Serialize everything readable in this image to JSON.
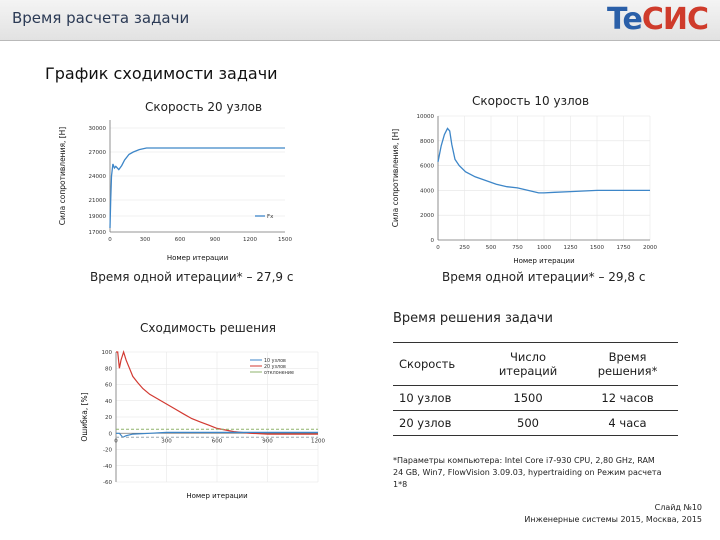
{
  "header": {
    "title": "Время расчета задачи",
    "logo_part1": "Te",
    "logo_part2": "СИС"
  },
  "section_title": "График сходимости задачи",
  "chart_left": {
    "title": "Скорость 20 узлов",
    "ylabel": "Сила сопротивления, [H]",
    "xlabel": "Номер итерации",
    "caption": "Время одной итерации* – 27,9 с"
  },
  "chart_right": {
    "title": "Скорость 10 узлов",
    "ylabel": "Сила сопротивления, [H]",
    "xlabel": "Номер итерации",
    "caption": "Время одной итерации* – 29,8 с"
  },
  "chart_conv": {
    "title": "Сходимость решения",
    "ylabel": "Ошибка, [%]",
    "xlabel": "Номер итерации"
  },
  "table": {
    "title": "Время решения задачи",
    "headers": [
      "Скорость",
      "Число итераций",
      "Время решения*"
    ],
    "rows": [
      [
        "10 узлов",
        "1500",
        "12 часов"
      ],
      [
        "20 узлов",
        "500",
        "4 часа"
      ]
    ]
  },
  "footnote": "*Параметры компьютера: Intel Core i7-930 CPU, 2,80 GHz, RAM 24 GB, Win7, FlowVision 3.09.03, hypertraiding on Режим расчета 1*8",
  "footer": {
    "slide": "Слайд №10",
    "event": "Инженерные системы 2015, Москва, 2015"
  },
  "colors": {
    "line_blue": "#3d86c8",
    "line_red": "#d23a32",
    "line_green": "#8fb36c",
    "line_gray": "#9aa7b0"
  },
  "chart_data": [
    {
      "type": "line",
      "title": "Скорость 20 узлов",
      "xlabel": "Номер итерации",
      "ylabel": "Сила сопротивления, [H]",
      "xlim": [
        0,
        1200
      ],
      "ylim": [
        17000,
        31000
      ],
      "xticks": [
        "0",
        "300",
        "600",
        "900",
        "1200",
        "1500"
      ],
      "yticks": [
        "17000",
        "19000",
        "21000",
        "24000",
        "27000",
        "30000"
      ],
      "legend": [
        "Fx"
      ],
      "legend_position": "bottom-right",
      "series": [
        {
          "x": [
            0,
            5,
            10,
            20,
            30,
            40,
            60,
            80,
            100,
            130,
            160,
            200,
            250,
            300,
            400,
            500,
            600,
            800,
            1000,
            1200
          ],
          "y": [
            17500,
            21000,
            24000,
            25500,
            25000,
            25200,
            24800,
            25300,
            26000,
            26700,
            27000,
            27300,
            27500,
            27500,
            27500,
            27500,
            27500,
            27500,
            27500,
            27500
          ]
        }
      ]
    },
    {
      "type": "line",
      "title": "Скорость 10 узлов",
      "xlabel": "Номер итерации",
      "ylabel": "Сила сопротивления, [H]",
      "xlim": [
        0,
        2000
      ],
      "ylim": [
        0,
        10000
      ],
      "xticks": [
        "0",
        "250",
        "500",
        "750",
        "1000",
        "1250",
        "1500",
        "1750",
        "2000"
      ],
      "yticks": [
        "0",
        "2000",
        "4000",
        "6000",
        "8000",
        "10000"
      ],
      "series": [
        {
          "x": [
            0,
            30,
            60,
            90,
            110,
            130,
            160,
            200,
            260,
            350,
            450,
            550,
            650,
            750,
            850,
            950,
            1000,
            1100,
            1250,
            1500,
            1750,
            2000
          ],
          "y": [
            6300,
            7600,
            8500,
            9000,
            8800,
            7700,
            6500,
            6000,
            5500,
            5100,
            4800,
            4500,
            4300,
            4200,
            4000,
            3800,
            3800,
            3850,
            3900,
            4000,
            4000,
            4000
          ]
        }
      ]
    },
    {
      "type": "line",
      "title": "Сходимость решения",
      "xlabel": "Номер итерации",
      "ylabel": "Ошибка, [%]",
      "xlim": [
        0,
        1200
      ],
      "ylim": [
        -60,
        100
      ],
      "xticks": [
        "0",
        "300",
        "600",
        "900",
        "1200"
      ],
      "yticks": [
        "100",
        "80",
        "60",
        "40",
        "20",
        "0",
        "-20",
        "-40",
        "-60"
      ],
      "legend": [
        "10 узлов",
        "20 узлов",
        "отклонение"
      ],
      "legend_position": "top-right",
      "series": [
        {
          "x": [
            0,
            10,
            20,
            30,
            45,
            60,
            80,
            100,
            130,
            160,
            200,
            250,
            300,
            350,
            400,
            450,
            500,
            550,
            600,
            700,
            800,
            900,
            1000,
            1200
          ],
          "y": [
            100,
            100,
            80,
            90,
            100,
            90,
            80,
            70,
            62,
            55,
            48,
            42,
            36,
            30,
            24,
            18,
            14,
            10,
            6,
            2,
            0,
            -1,
            -1,
            -1
          ]
        },
        {
          "x": [
            0,
            20,
            40,
            60,
            100,
            200,
            300,
            400,
            500,
            600,
            800,
            1000,
            1200
          ],
          "y": [
            0,
            0,
            -5,
            -3,
            -1,
            0,
            1,
            1,
            1,
            1,
            1,
            1,
            1
          ]
        },
        {
          "x": [
            0,
            1200
          ],
          "y": [
            5,
            5
          ]
        },
        {
          "x": [
            0,
            1200
          ],
          "y": [
            -5,
            -5
          ]
        }
      ]
    }
  ]
}
